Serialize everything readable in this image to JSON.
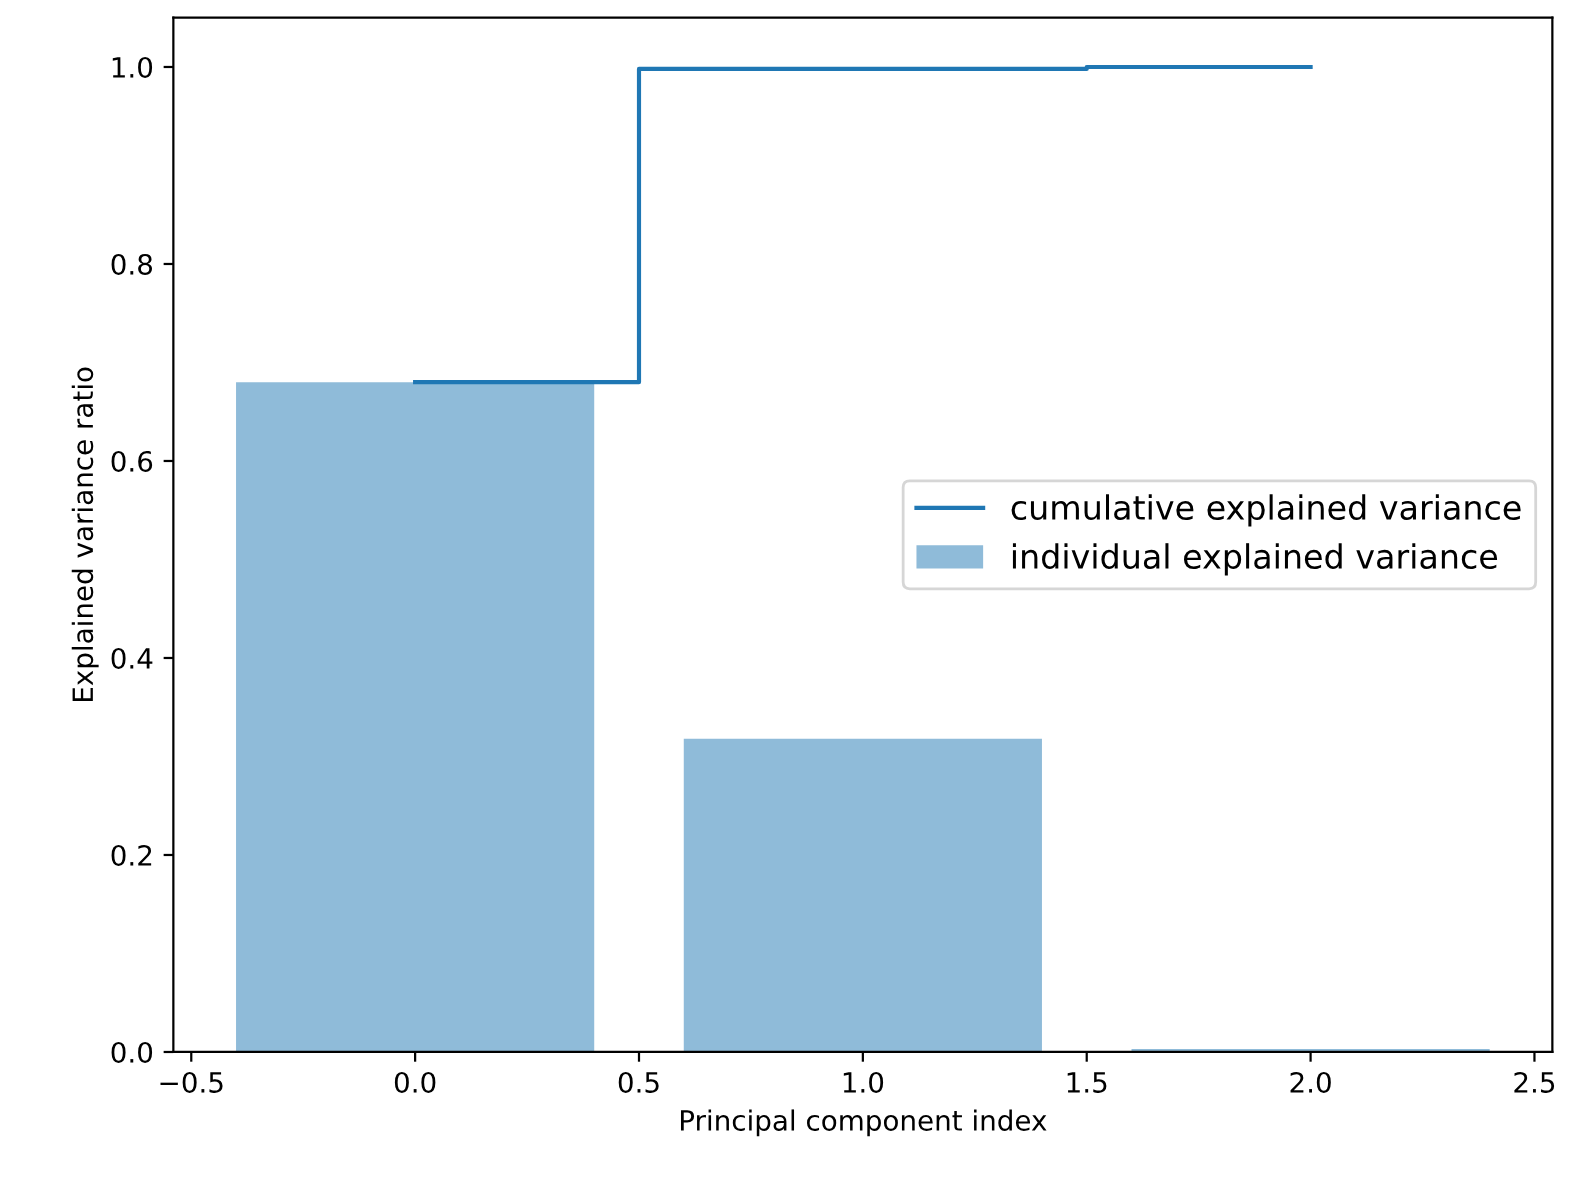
{
  "chart_data": {
    "type": "bar",
    "xlabel": "Principal component index",
    "ylabel": "Explained variance ratio",
    "x": [
      0,
      1,
      2
    ],
    "series": [
      {
        "name": "cumulative explained variance",
        "type": "step",
        "color": "#1f77b4",
        "values": [
          0.68,
          0.998,
          1.0
        ]
      },
      {
        "name": "individual explained variance",
        "color": "#8fbbd9",
        "values": [
          0.68,
          0.318,
          0.003
        ]
      }
    ],
    "xlim": [
      -0.54,
      2.54
    ],
    "ylim": [
      0,
      1.05
    ],
    "xticks": [
      {
        "value": -0.5,
        "label": "−0.5"
      },
      {
        "value": 0,
        "label": "0.0"
      },
      0.5,
      {
        "value": 1,
        "label": "1.0"
      },
      1.5,
      {
        "value": 2,
        "label": "2.0"
      },
      2.5
    ],
    "yticks": [
      {
        "value": 0,
        "label": "0.0"
      },
      0.2,
      0.4,
      0.6,
      0.8,
      {
        "value": 1,
        "label": "1.0"
      }
    ],
    "legend": "right"
  }
}
